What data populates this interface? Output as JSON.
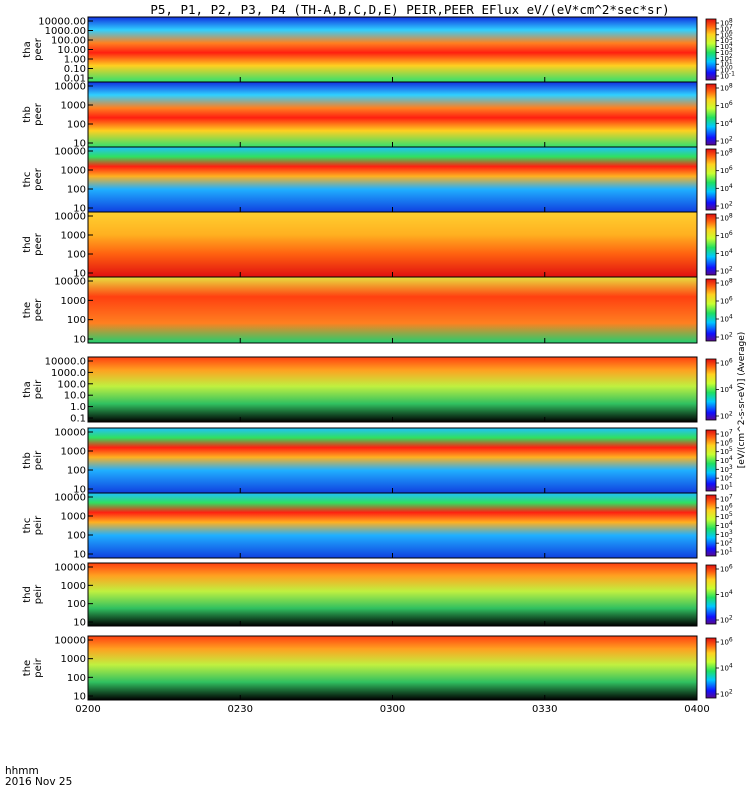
{
  "chart_data": {
    "type": "heatmap",
    "title": "P5, P1, P2, P3, P4 (TH-A,B,C,D,E) PEIR,PEER EFlux eV/(eV*cm^2*sec*sr)",
    "x_ticks": [
      "0200",
      "0230",
      "0300",
      "0330",
      "0400"
    ],
    "x_start_label": "hhmm",
    "x_date_label": "2016 Nov 25",
    "colorbar_unit": "[eV/(cm^2-s-sr-eV)] (Average)",
    "panels": [
      {
        "probe": "tha",
        "species": "peer",
        "yticks": [
          "10000.00",
          "1000.00",
          "100.00",
          "10.00",
          "1.00",
          "0.10",
          "0.01"
        ],
        "cbar_ticks": [
          "10^8",
          "10^7",
          "10^6",
          "10^5",
          "10^4",
          "10^3",
          "10^2",
          "10^1",
          "10^0",
          "10^-1"
        ]
      },
      {
        "probe": "thb",
        "species": "peer",
        "yticks": [
          "10000",
          "1000",
          "100",
          "10"
        ],
        "cbar_ticks": [
          "10^8",
          "10^6",
          "10^4",
          "10^2"
        ]
      },
      {
        "probe": "thc",
        "species": "peer",
        "yticks": [
          "10000",
          "1000",
          "100",
          "10"
        ],
        "cbar_ticks": [
          "10^8",
          "10^6",
          "10^4",
          "10^2"
        ]
      },
      {
        "probe": "thd",
        "species": "peer",
        "yticks": [
          "10000",
          "1000",
          "100",
          "10"
        ],
        "cbar_ticks": [
          "10^8",
          "10^6",
          "10^4",
          "10^2"
        ]
      },
      {
        "probe": "the",
        "species": "peer",
        "yticks": [
          "10000",
          "1000",
          "100",
          "10"
        ],
        "cbar_ticks": [
          "10^8",
          "10^6",
          "10^4",
          "10^2"
        ]
      },
      {
        "probe": "tha",
        "species": "peir",
        "yticks": [
          "10000.0",
          "1000.0",
          "100.0",
          "10.0",
          "1.0",
          "0.1"
        ],
        "cbar_ticks": [
          "10^6",
          "10^4",
          "10^2"
        ]
      },
      {
        "probe": "thb",
        "species": "peir",
        "yticks": [
          "10000",
          "1000",
          "100",
          "10"
        ],
        "cbar_ticks": [
          "10^7",
          "10^6",
          "10^5",
          "10^4",
          "10^3",
          "10^2",
          "10^1"
        ]
      },
      {
        "probe": "thc",
        "species": "peir",
        "yticks": [
          "10000",
          "1000",
          "100",
          "10"
        ],
        "cbar_ticks": [
          "10^7",
          "10^6",
          "10^5",
          "10^4",
          "10^3",
          "10^2",
          "10^1"
        ]
      },
      {
        "probe": "thd",
        "species": "peir",
        "yticks": [
          "10000",
          "1000",
          "100",
          "10"
        ],
        "cbar_ticks": [
          "10^6",
          "10^4",
          "10^2"
        ]
      },
      {
        "probe": "the",
        "species": "peir",
        "yticks": [
          "10000",
          "1000",
          "100",
          "10"
        ],
        "cbar_ticks": [
          "10^6",
          "10^4",
          "10^2"
        ]
      }
    ]
  }
}
